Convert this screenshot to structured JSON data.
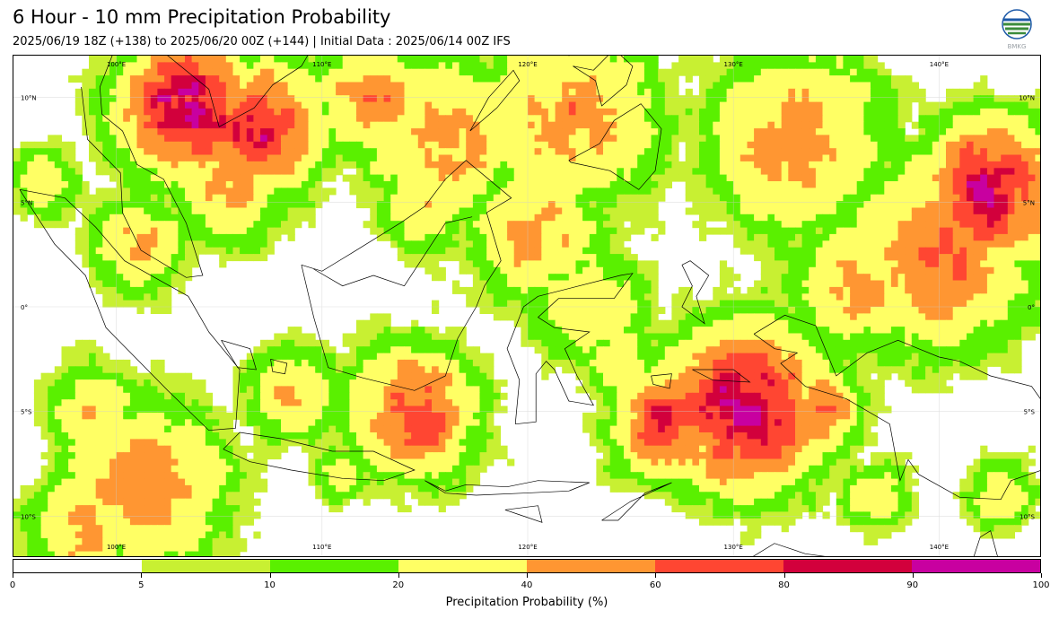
{
  "header": {
    "title": "6 Hour - 10 mm Precipitation Probability",
    "subtitle": "2025/06/19 18Z (+138) to 2025/06/20 00Z (+144) | Initial Data : 2025/06/14 00Z IFS",
    "logo_text": "BMKG"
  },
  "map": {
    "region": "Indonesia",
    "lon_range": [
      95,
      145
    ],
    "lat_range": [
      -12,
      12
    ],
    "gridlines": true,
    "lon_labels_top": [
      "100°E",
      "110°E",
      "120°E",
      "130°E",
      "140°E"
    ],
    "lon_labels_bottom": [
      "100°E",
      "110°E",
      "120°E",
      "130°E",
      "140°E"
    ],
    "lat_labels_left": [
      "10°N",
      "5°N",
      "0°",
      "5°S",
      "10°S"
    ],
    "lat_labels_right": [
      "10°N",
      "5°N",
      "0°",
      "5°S",
      "10°S"
    ]
  },
  "colorbar": {
    "label": "Precipitation Probability (%)",
    "ticks": [
      "0",
      "5",
      "10",
      "20",
      "40",
      "60",
      "80",
      "90",
      "100"
    ],
    "colors": [
      "#ffffff",
      "#c8f032",
      "#5af000",
      "#ffff64",
      "#ff9632",
      "#ff4632",
      "#d2003c",
      "#c800a0"
    ]
  }
}
